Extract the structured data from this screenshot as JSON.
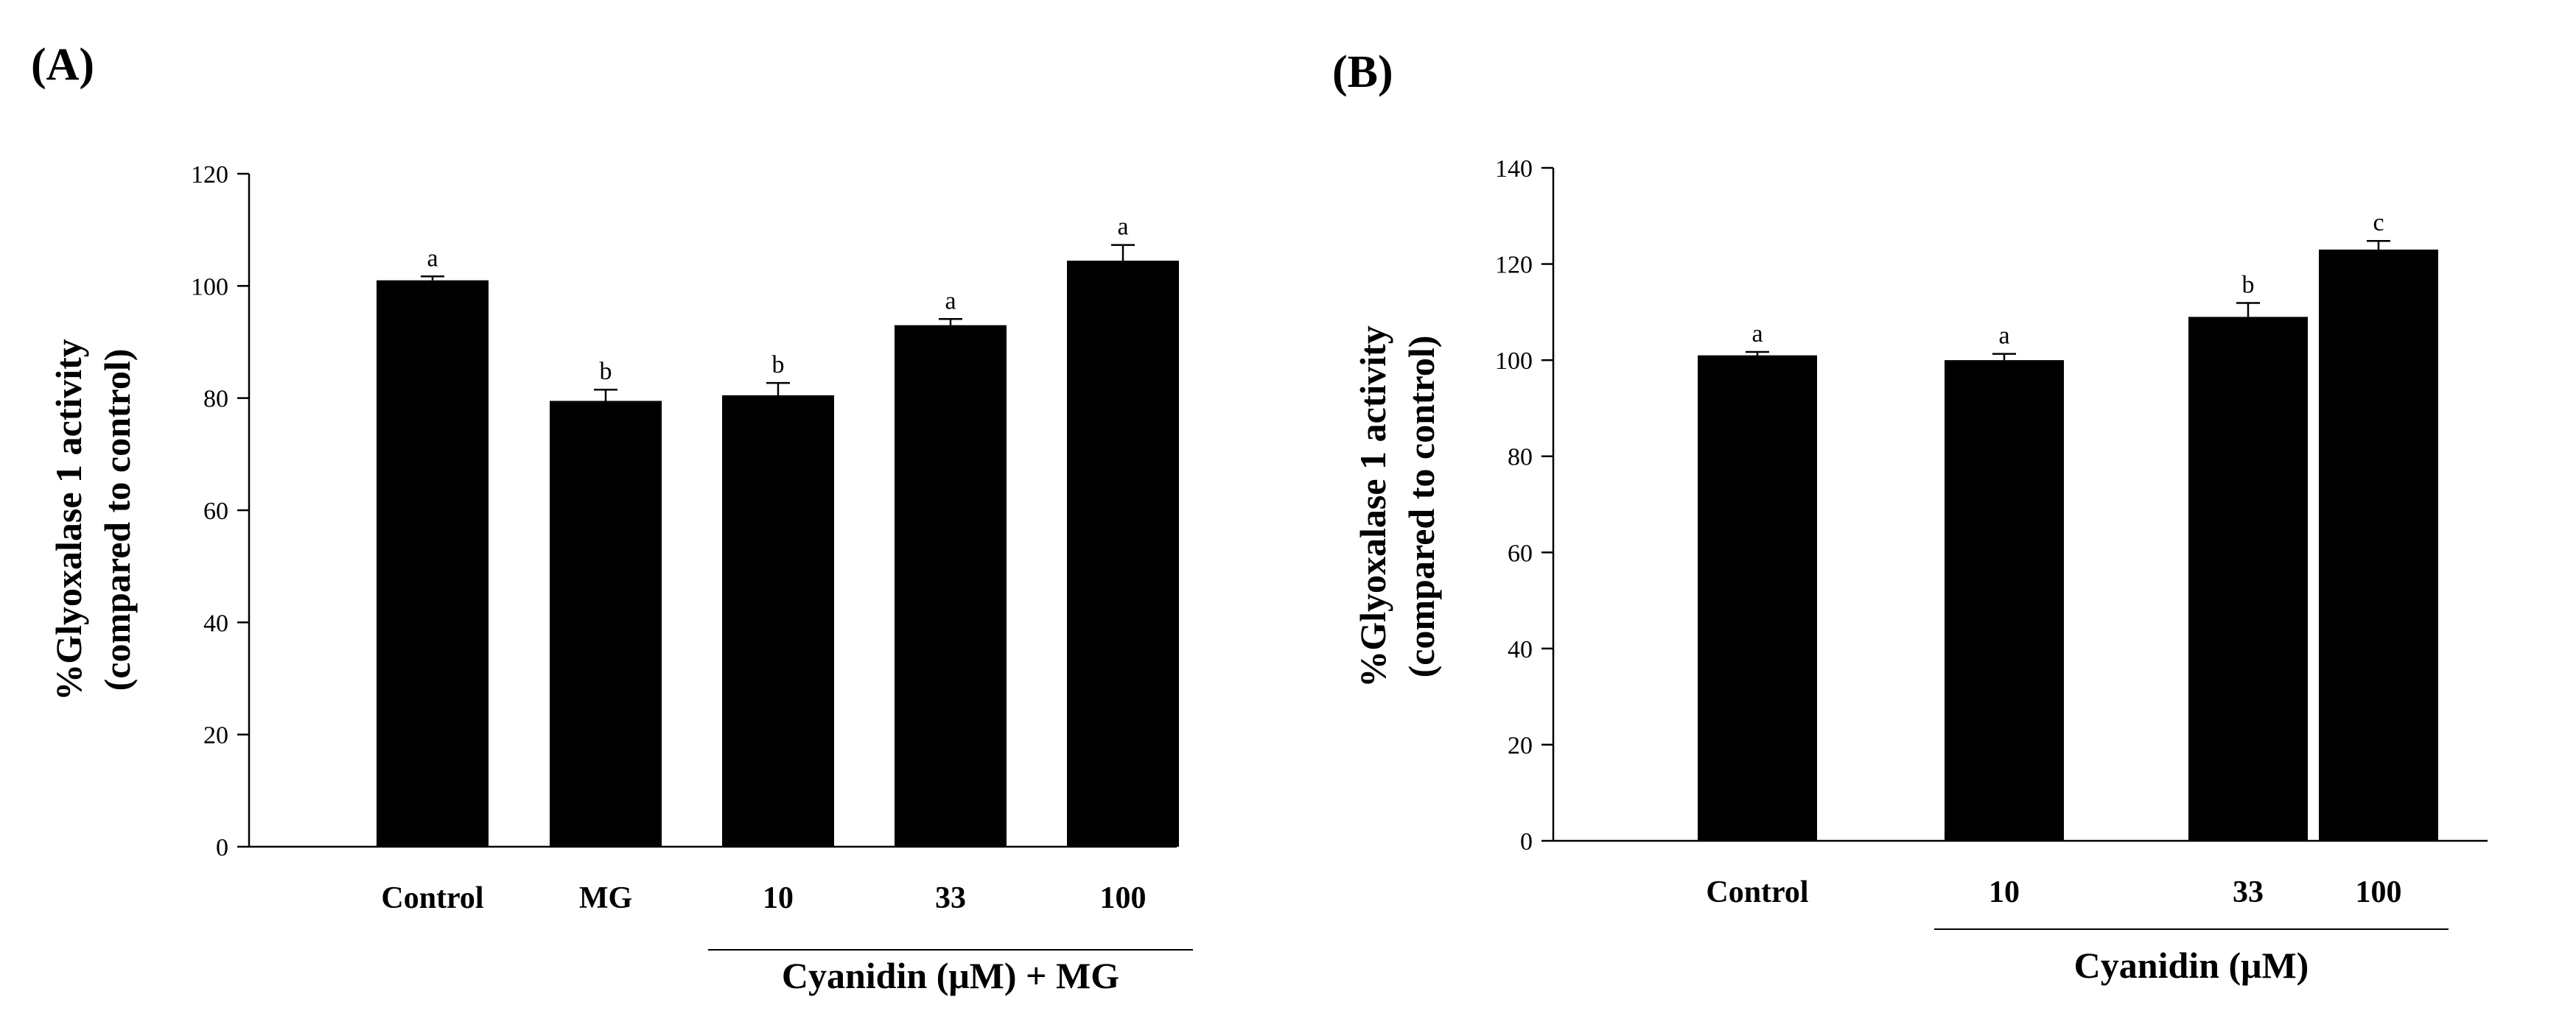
{
  "chart_data": [
    {
      "type": "bar",
      "panel": "(A)",
      "ylabel_line1": "%Glyoxalase 1 activity",
      "ylabel_line2": "(compared to control)",
      "ylim": [
        0,
        120
      ],
      "yticks": [
        0,
        20,
        40,
        60,
        80,
        100,
        120
      ],
      "categories": [
        "Control",
        "MG",
        "10",
        "33",
        "100"
      ],
      "values": [
        101,
        79.5,
        80.5,
        93,
        104.5
      ],
      "errors": [
        0.7,
        2.0,
        2.2,
        1.1,
        2.8
      ],
      "significance": [
        "a",
        "b",
        "b",
        "a",
        "a"
      ],
      "group_label": "Cyanidin (μM) + MG",
      "group_span": [
        2,
        4
      ],
      "bar_color": "#000000"
    },
    {
      "type": "bar",
      "panel": "(B)",
      "ylabel_line1": "%Glyoxalase 1 activity",
      "ylabel_line2": "(compared to control)",
      "ylim": [
        0,
        140
      ],
      "yticks": [
        0,
        20,
        40,
        60,
        80,
        100,
        120,
        140
      ],
      "categories": [
        "Control",
        "10",
        "33",
        "100"
      ],
      "values": [
        101,
        100,
        109,
        123
      ],
      "errors": [
        0.7,
        1.3,
        2.9,
        1.8
      ],
      "significance": [
        "a",
        "a",
        "b",
        "c"
      ],
      "group_label": "Cyanidin (μM)",
      "group_span": [
        1,
        3
      ],
      "bar_color": "#000000"
    }
  ]
}
